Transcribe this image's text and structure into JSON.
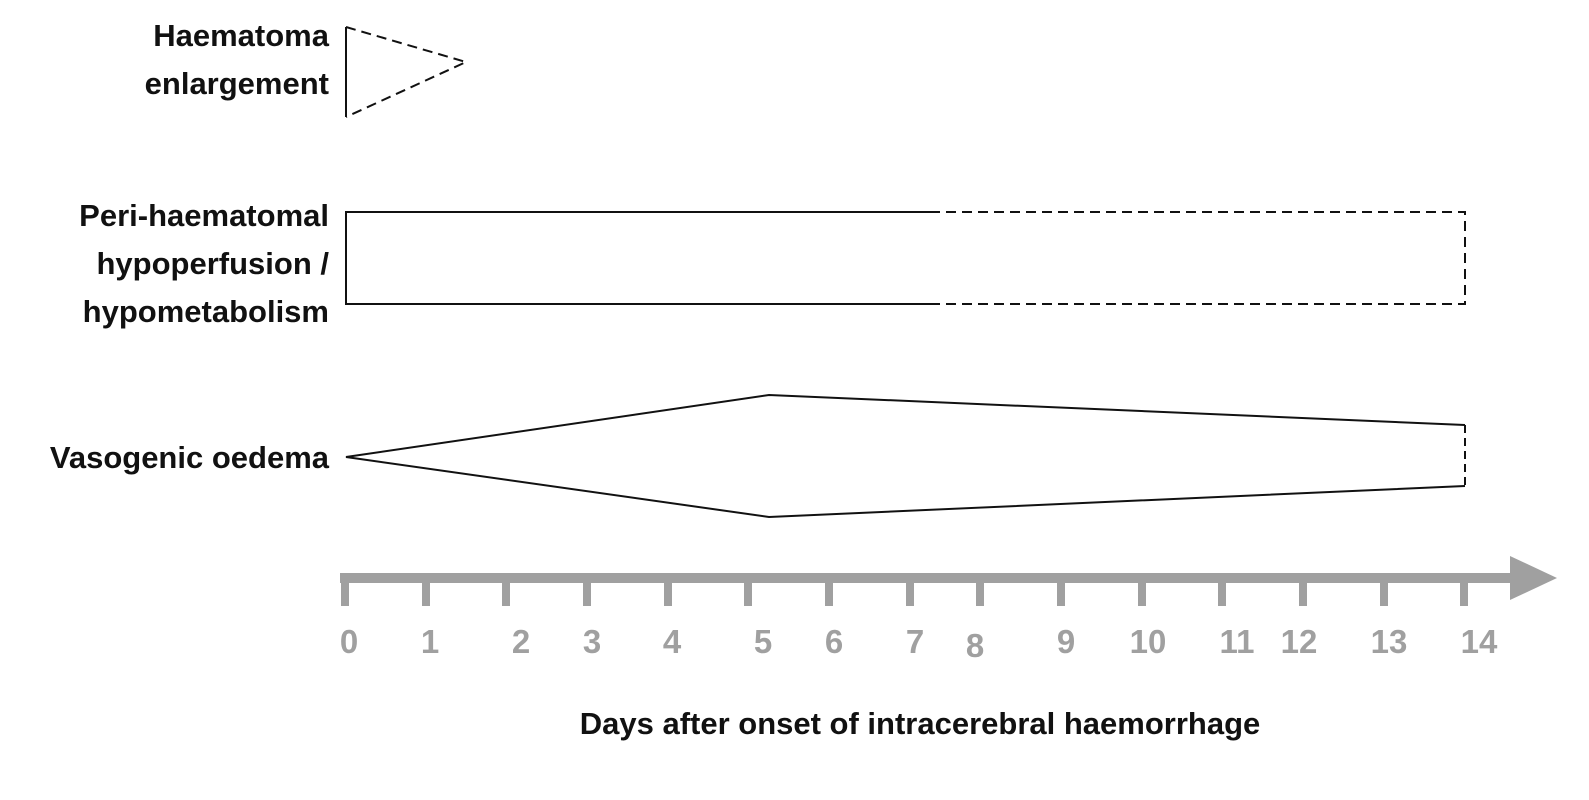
{
  "diagram": {
    "rows": [
      {
        "id": "haematoma",
        "lines": [
          "Haematoma",
          "enlargement"
        ]
      },
      {
        "id": "perfusion",
        "lines": [
          "Peri-haematomal",
          "hypoperfusion /",
          "hypometabolism"
        ]
      },
      {
        "id": "oedema",
        "lines": [
          "Vasogenic oedema"
        ]
      }
    ],
    "axis": {
      "ticks": [
        "0",
        "1",
        "2",
        "3",
        "4",
        "5",
        "6",
        "7",
        "8",
        "9",
        "10",
        "11",
        "12",
        "13",
        "14"
      ],
      "label": "Days after onset of intracerebral haemorrhage",
      "color": "#a0a0a0"
    },
    "line_color": "#111111"
  }
}
